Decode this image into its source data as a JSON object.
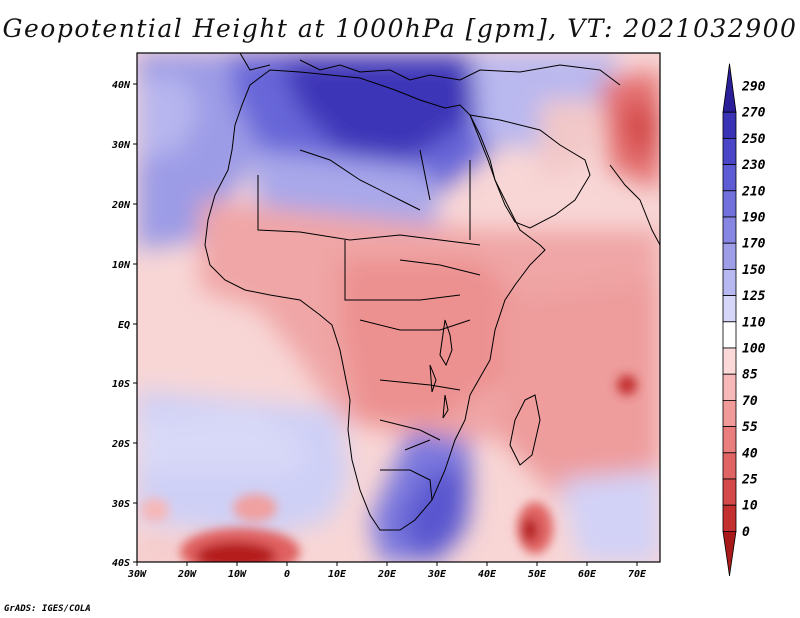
{
  "title": "Geopotential Height at 1000hPa [gpm], VT: 2021032900",
  "credit": "GrADS: IGES/COLA",
  "lon_ticks": [
    "30W",
    "20W",
    "10W",
    "0",
    "10E",
    "20E",
    "30E",
    "40E",
    "50E",
    "60E",
    "70E"
  ],
  "lat_ticks": [
    "40N",
    "30N",
    "20N",
    "10N",
    "EQ",
    "10S",
    "20S",
    "30S",
    "40S"
  ],
  "colorbar": {
    "labels": [
      "290",
      "270",
      "250",
      "230",
      "210",
      "190",
      "170",
      "150",
      "125",
      "110",
      "100",
      "85",
      "70",
      "55",
      "40",
      "25",
      "10",
      "0"
    ],
    "colors": [
      "#2a1e99",
      "#3a33b5",
      "#4b46c8",
      "#5d5cd4",
      "#7270dc",
      "#8786e2",
      "#9e9de8",
      "#b8b8f0",
      "#d6d7f8",
      "#ffffff",
      "#fbd9d9",
      "#f6b8b8",
      "#f09a9a",
      "#ea7e7e",
      "#e06464",
      "#d44a4a",
      "#c43030",
      "#a81a1a"
    ]
  }
}
